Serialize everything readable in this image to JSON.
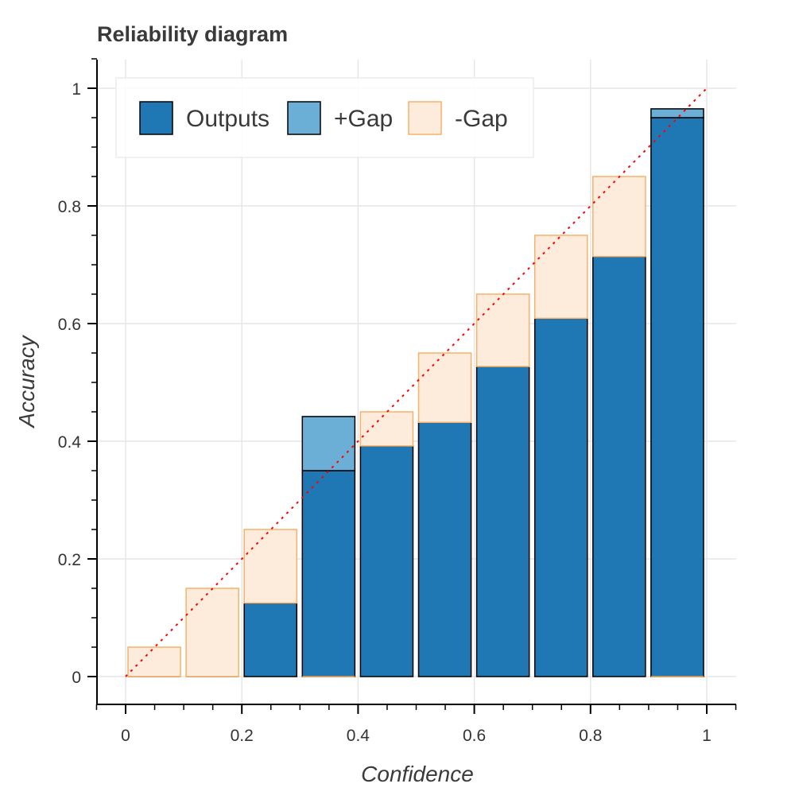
{
  "chart_data": {
    "type": "bar",
    "title": "Reliability diagram",
    "xlabel": "Confidence",
    "ylabel": "Accuracy",
    "xlim": [
      -0.05,
      1.05
    ],
    "ylim": [
      -0.05,
      1.05
    ],
    "xticks": [
      0,
      0.2,
      0.4,
      0.6,
      0.8,
      1
    ],
    "xtick_labels": [
      "0",
      "0.2",
      "0.4",
      "0.6",
      "0.8",
      "1"
    ],
    "yticks": [
      0,
      0.2,
      0.4,
      0.6,
      0.8,
      1
    ],
    "ytick_labels": [
      "0",
      "0.2",
      "0.4",
      "0.6",
      "0.8",
      "1"
    ],
    "grid": true,
    "legend_position": "top-left",
    "bin_width": 0.1,
    "bin_centers": [
      0.05,
      0.15,
      0.25,
      0.35,
      0.45,
      0.55,
      0.65,
      0.75,
      0.85,
      0.95
    ],
    "series": [
      {
        "name": "Outputs",
        "color": "#1f77b4",
        "edgecolor": "#000000",
        "values": [
          0.0,
          0.0,
          0.125,
          0.35,
          0.392,
          0.432,
          0.527,
          0.609,
          0.714,
          0.95
        ]
      },
      {
        "name": "+Gap",
        "color": "#6baed6",
        "edgecolor": "#000000",
        "values": [
          0.0,
          0.0,
          0.0,
          0.092,
          0.0,
          0.0,
          0.0,
          0.0,
          0.0,
          0.015
        ]
      },
      {
        "name": "-Gap",
        "color": "#fdebdc",
        "edgecolor": "#f6b26b",
        "values": [
          0.05,
          0.15,
          0.125,
          0.0,
          0.058,
          0.118,
          0.123,
          0.141,
          0.136,
          0.0
        ]
      }
    ],
    "reference_line": {
      "from": [
        0,
        0
      ],
      "to": [
        1,
        1
      ],
      "color": "#ff0000",
      "style": "dotted"
    }
  }
}
